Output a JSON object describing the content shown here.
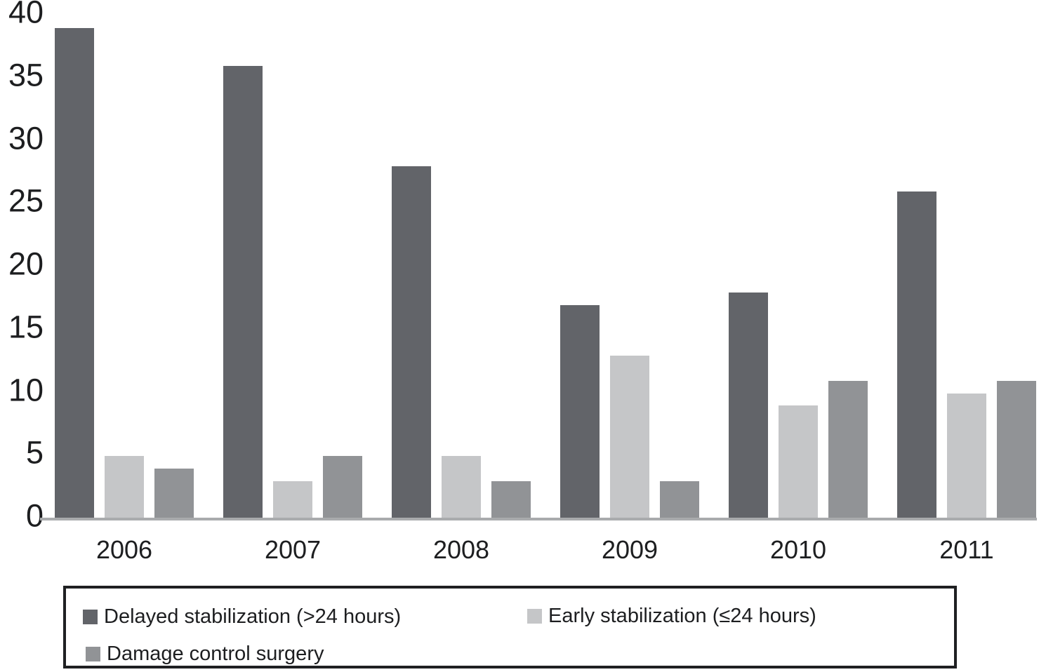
{
  "chart_data": {
    "type": "bar",
    "title": "",
    "xlabel": "",
    "ylabel": "",
    "categories": [
      "2006",
      "2007",
      "2008",
      "2009",
      "2010",
      "2011"
    ],
    "series": [
      {
        "name": "Delayed stabilization (>24 hours)",
        "color": "#626469",
        "values": [
          39,
          36,
          28,
          17,
          18,
          26
        ]
      },
      {
        "name": "Early stabilization (≤24 hours)",
        "color": "#c5c6c8",
        "values": [
          5,
          3,
          5,
          13,
          9,
          10
        ]
      },
      {
        "name": "Damage control surgery",
        "color": "#919396",
        "values": [
          4,
          5,
          3,
          3,
          11,
          11
        ]
      }
    ],
    "y_ticks": [
      0,
      5,
      10,
      15,
      20,
      25,
      30,
      35,
      40
    ],
    "ylim": [
      0,
      40
    ],
    "grid": false,
    "legend_position": "bottom",
    "axis_line_color": "#a9abad",
    "text_color": "#1d1e20"
  }
}
